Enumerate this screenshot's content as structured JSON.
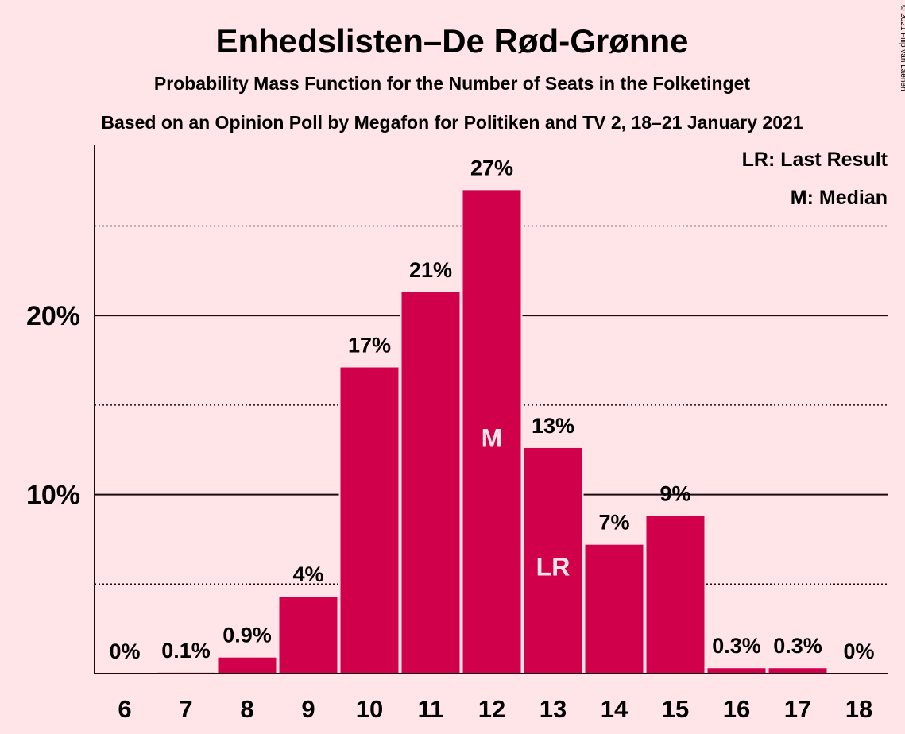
{
  "chart_data": {
    "type": "bar",
    "title": "Enhedslisten–De Rød-Grønne",
    "subtitle": "Probability Mass Function for the Number of Seats in the Folketinget",
    "subtitle2": "Based on an Opinion Poll by Megafon for Politiken and TV 2, 18–21 January 2021",
    "copyright": "© 2021 Filip van Laenen",
    "legend": [
      "LR: Last Result",
      "M: Median"
    ],
    "legend_position": "top-right",
    "categories": [
      "6",
      "7",
      "8",
      "9",
      "10",
      "11",
      "12",
      "13",
      "14",
      "15",
      "16",
      "17",
      "18"
    ],
    "values": [
      0,
      0.05,
      0.9,
      4.3,
      17.1,
      21.3,
      27.0,
      12.6,
      7.2,
      8.8,
      0.3,
      0.3,
      0
    ],
    "labels": [
      "0%",
      "0.1%",
      "0.9%",
      "4%",
      "17%",
      "21%",
      "27%",
      "13%",
      "7%",
      "9%",
      "0.3%",
      "0.3%",
      "0%"
    ],
    "markers": [
      {
        "category": "12",
        "text": "M"
      },
      {
        "category": "13",
        "text": "LR"
      }
    ],
    "y_ticks": [
      {
        "value": 10,
        "label": "10%"
      },
      {
        "value": 20,
        "label": "20%"
      }
    ],
    "minor_gridlines": [
      5,
      15,
      25
    ],
    "ylim": [
      0,
      29.5
    ],
    "bar_color": "#D0004A",
    "background_color": "#FFE4E8"
  }
}
